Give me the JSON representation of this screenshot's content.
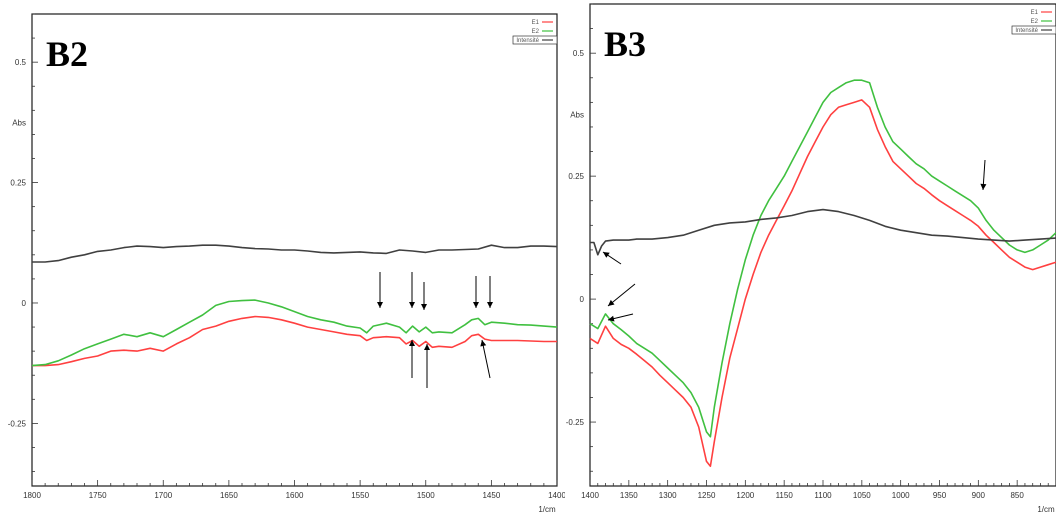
{
  "chart_data": [
    {
      "type": "line",
      "panel_label": "B2",
      "ylabel": "Abs",
      "x_unit": "1/cm",
      "xlim": [
        1800,
        1400
      ],
      "ylim": [
        -0.38,
        0.6
      ],
      "x_ticks": [
        "1800",
        "1750",
        "1700",
        "1650",
        "1600",
        "1550",
        "1500",
        "1450",
        "1400"
      ],
      "y_ticks": [
        "0.5",
        "0.25",
        "0",
        "-0.25"
      ],
      "legend": [
        "E1",
        "E2",
        "Intensité"
      ],
      "series": [
        {
          "color": "#ff4040",
          "x": [
            1800,
            1790,
            1780,
            1770,
            1760,
            1750,
            1740,
            1730,
            1720,
            1710,
            1700,
            1690,
            1680,
            1670,
            1660,
            1650,
            1640,
            1630,
            1620,
            1610,
            1600,
            1590,
            1580,
            1570,
            1560,
            1550,
            1545,
            1540,
            1530,
            1520,
            1515,
            1510,
            1505,
            1500,
            1495,
            1490,
            1480,
            1470,
            1465,
            1460,
            1455,
            1450,
            1440,
            1430,
            1420,
            1410,
            1400
          ],
          "y": [
            -0.13,
            -0.13,
            -0.128,
            -0.122,
            -0.115,
            -0.11,
            -0.1,
            -0.098,
            -0.1,
            -0.094,
            -0.1,
            -0.085,
            -0.072,
            -0.055,
            -0.048,
            -0.038,
            -0.032,
            -0.028,
            -0.03,
            -0.035,
            -0.042,
            -0.05,
            -0.055,
            -0.06,
            -0.065,
            -0.068,
            -0.078,
            -0.072,
            -0.07,
            -0.072,
            -0.085,
            -0.078,
            -0.09,
            -0.08,
            -0.092,
            -0.09,
            -0.092,
            -0.08,
            -0.068,
            -0.065,
            -0.075,
            -0.078,
            -0.078,
            -0.078,
            -0.079,
            -0.08,
            -0.08
          ]
        },
        {
          "color": "#40c040",
          "x": [
            1800,
            1790,
            1780,
            1770,
            1760,
            1750,
            1740,
            1730,
            1720,
            1710,
            1700,
            1690,
            1680,
            1670,
            1660,
            1650,
            1640,
            1630,
            1620,
            1610,
            1600,
            1590,
            1580,
            1570,
            1560,
            1550,
            1545,
            1540,
            1530,
            1520,
            1515,
            1510,
            1505,
            1500,
            1495,
            1490,
            1480,
            1470,
            1465,
            1460,
            1455,
            1450,
            1440,
            1430,
            1420,
            1410,
            1400
          ],
          "y": [
            -0.13,
            -0.128,
            -0.12,
            -0.108,
            -0.095,
            -0.085,
            -0.075,
            -0.065,
            -0.07,
            -0.062,
            -0.07,
            -0.055,
            -0.04,
            -0.025,
            -0.005,
            0.003,
            0.005,
            0.006,
            0.0,
            -0.008,
            -0.018,
            -0.028,
            -0.035,
            -0.04,
            -0.048,
            -0.052,
            -0.062,
            -0.048,
            -0.042,
            -0.05,
            -0.062,
            -0.048,
            -0.06,
            -0.05,
            -0.062,
            -0.06,
            -0.062,
            -0.045,
            -0.035,
            -0.032,
            -0.045,
            -0.04,
            -0.042,
            -0.045,
            -0.046,
            -0.048,
            -0.05
          ]
        },
        {
          "color": "#404040",
          "x": [
            1800,
            1790,
            1780,
            1770,
            1760,
            1750,
            1740,
            1730,
            1720,
            1710,
            1700,
            1690,
            1680,
            1670,
            1660,
            1650,
            1640,
            1630,
            1620,
            1610,
            1600,
            1590,
            1580,
            1570,
            1560,
            1550,
            1540,
            1530,
            1520,
            1510,
            1500,
            1490,
            1480,
            1470,
            1460,
            1450,
            1440,
            1430,
            1420,
            1410,
            1400
          ],
          "y": [
            0.085,
            0.085,
            0.088,
            0.095,
            0.1,
            0.107,
            0.11,
            0.115,
            0.118,
            0.117,
            0.115,
            0.117,
            0.118,
            0.12,
            0.12,
            0.118,
            0.115,
            0.113,
            0.112,
            0.11,
            0.11,
            0.108,
            0.105,
            0.104,
            0.105,
            0.106,
            0.104,
            0.103,
            0.11,
            0.108,
            0.105,
            0.11,
            0.11,
            0.111,
            0.112,
            0.12,
            0.115,
            0.115,
            0.118,
            0.118,
            0.117
          ]
        }
      ]
    },
    {
      "type": "line",
      "panel_label": "B3",
      "ylabel": "Abs",
      "x_unit": "1/cm",
      "xlim": [
        1400,
        800
      ],
      "ylim": [
        -0.38,
        0.6
      ],
      "x_ticks": [
        "1400",
        "1350",
        "1300",
        "1250",
        "1200",
        "1150",
        "1100",
        "1050",
        "1000",
        "950",
        "900",
        "850"
      ],
      "y_ticks": [
        "0.5",
        "0.25",
        "0",
        "-0.25"
      ],
      "legend": [
        "E1",
        "E2",
        "Intensité"
      ],
      "series": [
        {
          "color": "#ff4040",
          "x": [
            1400,
            1390,
            1380,
            1370,
            1360,
            1350,
            1340,
            1330,
            1320,
            1310,
            1300,
            1290,
            1280,
            1270,
            1260,
            1250,
            1245,
            1240,
            1230,
            1220,
            1210,
            1200,
            1190,
            1180,
            1170,
            1160,
            1150,
            1140,
            1130,
            1120,
            1110,
            1100,
            1090,
            1080,
            1070,
            1060,
            1050,
            1040,
            1030,
            1020,
            1010,
            1000,
            990,
            980,
            970,
            960,
            950,
            940,
            930,
            920,
            910,
            900,
            890,
            880,
            870,
            860,
            850,
            840,
            830,
            820,
            810,
            800
          ],
          "y": [
            -0.08,
            -0.09,
            -0.055,
            -0.08,
            -0.092,
            -0.1,
            -0.112,
            -0.125,
            -0.138,
            -0.155,
            -0.17,
            -0.185,
            -0.2,
            -0.22,
            -0.26,
            -0.33,
            -0.34,
            -0.29,
            -0.2,
            -0.12,
            -0.06,
            0.0,
            0.05,
            0.095,
            0.13,
            0.16,
            0.19,
            0.22,
            0.255,
            0.29,
            0.32,
            0.35,
            0.375,
            0.39,
            0.395,
            0.4,
            0.405,
            0.39,
            0.345,
            0.31,
            0.28,
            0.265,
            0.25,
            0.235,
            0.225,
            0.212,
            0.2,
            0.19,
            0.18,
            0.17,
            0.16,
            0.148,
            0.13,
            0.115,
            0.1,
            0.085,
            0.075,
            0.065,
            0.06,
            0.065,
            0.07,
            0.075
          ]
        },
        {
          "color": "#40c040",
          "x": [
            1400,
            1390,
            1380,
            1370,
            1360,
            1350,
            1340,
            1330,
            1320,
            1310,
            1300,
            1290,
            1280,
            1270,
            1260,
            1250,
            1245,
            1240,
            1230,
            1220,
            1210,
            1200,
            1190,
            1180,
            1170,
            1160,
            1150,
            1140,
            1130,
            1120,
            1110,
            1100,
            1090,
            1080,
            1070,
            1060,
            1050,
            1040,
            1030,
            1020,
            1010,
            1000,
            990,
            980,
            970,
            960,
            950,
            940,
            930,
            920,
            910,
            900,
            890,
            880,
            870,
            860,
            850,
            840,
            830,
            820,
            810,
            800
          ],
          "y": [
            -0.05,
            -0.06,
            -0.03,
            -0.05,
            -0.062,
            -0.075,
            -0.09,
            -0.1,
            -0.11,
            -0.125,
            -0.14,
            -0.155,
            -0.17,
            -0.19,
            -0.22,
            -0.27,
            -0.28,
            -0.22,
            -0.13,
            -0.05,
            0.02,
            0.08,
            0.13,
            0.17,
            0.2,
            0.225,
            0.25,
            0.28,
            0.31,
            0.34,
            0.37,
            0.4,
            0.42,
            0.43,
            0.44,
            0.445,
            0.445,
            0.44,
            0.39,
            0.35,
            0.32,
            0.305,
            0.29,
            0.275,
            0.265,
            0.25,
            0.24,
            0.23,
            0.22,
            0.21,
            0.2,
            0.185,
            0.16,
            0.14,
            0.125,
            0.11,
            0.1,
            0.095,
            0.1,
            0.11,
            0.12,
            0.135
          ]
        },
        {
          "color": "#404040",
          "x": [
            1400,
            1395,
            1390,
            1385,
            1380,
            1370,
            1360,
            1350,
            1340,
            1320,
            1300,
            1280,
            1260,
            1240,
            1220,
            1200,
            1180,
            1160,
            1140,
            1120,
            1100,
            1080,
            1060,
            1040,
            1020,
            1000,
            980,
            960,
            940,
            920,
            900,
            880,
            860,
            840,
            820,
            800
          ],
          "y": [
            0.115,
            0.115,
            0.09,
            0.108,
            0.118,
            0.12,
            0.12,
            0.12,
            0.122,
            0.122,
            0.125,
            0.13,
            0.14,
            0.15,
            0.155,
            0.157,
            0.162,
            0.165,
            0.17,
            0.178,
            0.182,
            0.178,
            0.17,
            0.16,
            0.148,
            0.14,
            0.135,
            0.13,
            0.128,
            0.125,
            0.122,
            0.12,
            0.118,
            0.12,
            0.122,
            0.124
          ]
        }
      ]
    }
  ]
}
